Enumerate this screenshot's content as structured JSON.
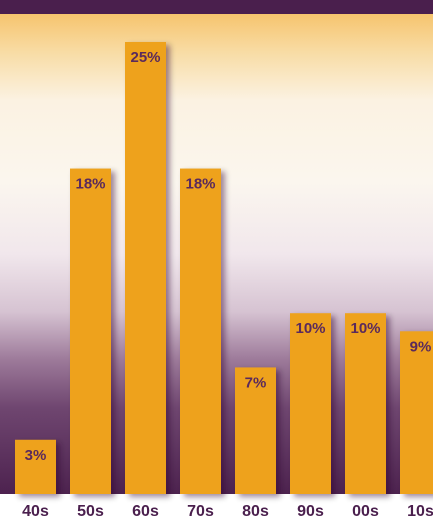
{
  "chart_data": {
    "type": "bar",
    "title": "",
    "xlabel": "",
    "ylabel": "",
    "categories": [
      "40s",
      "50s",
      "60s",
      "70s",
      "80s",
      "90s",
      "00s",
      "10s"
    ],
    "values": [
      3,
      18,
      25,
      18,
      7,
      10,
      10,
      9
    ],
    "value_labels": [
      "3%",
      "18%",
      "25%",
      "18%",
      "7%",
      "10%",
      "10%",
      "9%"
    ],
    "unit": "%",
    "ylim": [
      0,
      28
    ],
    "grid": false,
    "legend": "none"
  },
  "colors": {
    "bar": "#eea21c",
    "label_text": "#5a2a5c",
    "header": "#4a1f4d",
    "background_top": "#f6c46e",
    "background_bottom": "#4d224f"
  }
}
